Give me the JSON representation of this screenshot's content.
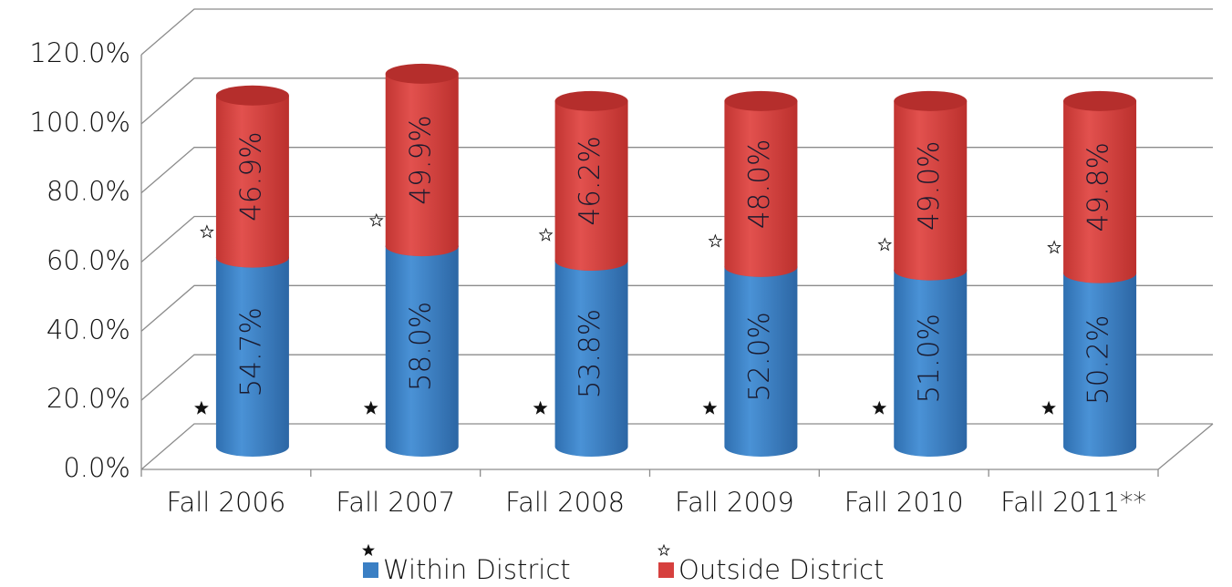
{
  "chart_data": {
    "type": "stacked-cylinder",
    "categories": [
      "Fall 2006",
      "Fall 2007",
      "Fall 2008",
      "Fall 2009",
      "Fall 2010",
      "Fall 2011**"
    ],
    "series": [
      {
        "name": "Within District",
        "color": "#3a7fc4",
        "values": [
          54.7,
          58.0,
          53.8,
          52.0,
          51.0,
          50.2
        ],
        "value_labels": [
          "54.7%",
          "58.0%",
          "53.8%",
          "52.0%",
          "51.0%",
          "50.2%"
        ]
      },
      {
        "name": "Outside District",
        "color": "#d6403e",
        "values": [
          46.9,
          49.9,
          46.2,
          48.0,
          49.0,
          49.8
        ],
        "value_labels": [
          "46.9%",
          "49.9%",
          "46.2%",
          "48.0%",
          "49.0%",
          "49.8%"
        ]
      }
    ],
    "ylim": [
      0,
      120
    ],
    "yticks": [
      {
        "value": 0,
        "label": "0.0%"
      },
      {
        "value": 20,
        "label": "20.0%"
      },
      {
        "value": 40,
        "label": "40.0%"
      },
      {
        "value": 60,
        "label": "60.0%"
      },
      {
        "value": 80,
        "label": "80.0%"
      },
      {
        "value": 100,
        "label": "100.0%"
      },
      {
        "value": 120,
        "label": "120.0%"
      }
    ],
    "grid": true
  }
}
